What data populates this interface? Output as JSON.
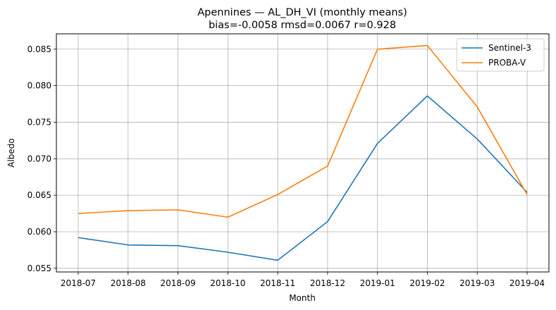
{
  "chart_data": {
    "type": "line",
    "title": "Apennines — AL_DH_VI (monthly means)",
    "subtitle": "bias=-0.0058  rmsd=0.0067  r=0.928",
    "xlabel": "Month",
    "ylabel": "Albedo",
    "categories": [
      "2018-07",
      "2018-08",
      "2018-09",
      "2018-10",
      "2018-11",
      "2018-12",
      "2019-01",
      "2019-02",
      "2019-03",
      "2019-04"
    ],
    "ylim": [
      0.0545,
      0.0871
    ],
    "yticks": [
      "0.055",
      "0.060",
      "0.065",
      "0.070",
      "0.075",
      "0.080",
      "0.085"
    ],
    "grid": true,
    "legend_position": "top-right",
    "series": [
      {
        "name": "Sentinel-3",
        "color": "#1f77b4",
        "values": [
          0.0592,
          0.0582,
          0.0581,
          0.0572,
          0.0561,
          0.0614,
          0.0721,
          0.0786,
          0.0727,
          0.0654
        ]
      },
      {
        "name": "PROBA-V",
        "color": "#ff7f0e",
        "values": [
          0.0625,
          0.0629,
          0.063,
          0.062,
          0.0651,
          0.069,
          0.085,
          0.0855,
          0.0771,
          0.0651
        ]
      }
    ]
  }
}
